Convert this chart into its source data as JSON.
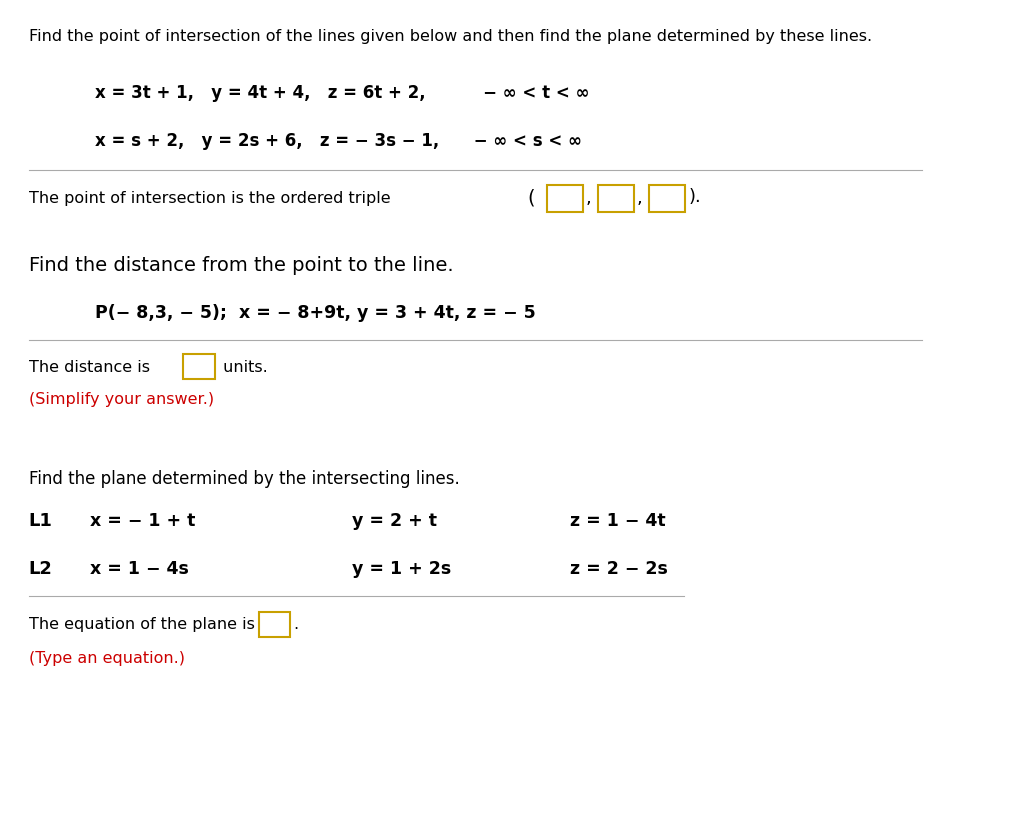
{
  "bg_color": "#ffffff",
  "text_color": "#000000",
  "red_color": "#cc0000",
  "box_color": "#c8a000",
  "title1": "Find the point of intersection of the lines given below and then find the plane determined by these lines.",
  "line1a": "x = 3t + 1,   y = 4t + 4,   z = 6t + 2,          − ∞ < t < ∞",
  "line1b": "x = s + 2,   y = 2s + 6,   z = − 3s − 1,      − ∞ < s < ∞",
  "intersection_text": "The point of intersection is the ordered triple ",
  "title2": "Find the distance from the point to the line.",
  "line2a": "P(− 8,3, − 5);  x = − 8+9t, y = 3 + 4t, z = − 5",
  "distance_text": "The distance is ",
  "distance_suffix": " units.",
  "simplify_text": "(Simplify your answer.)",
  "title3": "Find the plane determined by the intersecting lines.",
  "L1_label": "L1",
  "L1_x": "x = − 1 + t",
  "L1_y": "y = 2 + t",
  "L1_z": "z = 1 − 4t",
  "L2_label": "L2",
  "L2_x": "x = 1 − 4s",
  "L2_y": "y = 1 + 2s",
  "L2_z": "z = 2 − 2s",
  "plane_text": "The equation of the plane is ",
  "plane_suffix": ".",
  "type_text": "(Type an equation.)"
}
